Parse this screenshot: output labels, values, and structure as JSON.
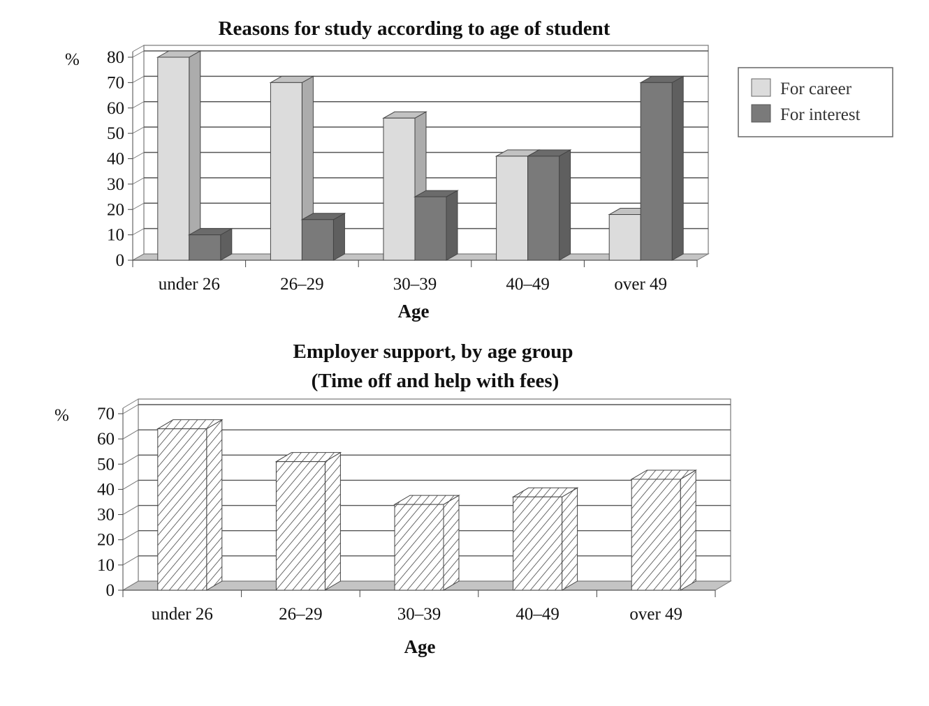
{
  "chart_data": [
    {
      "type": "bar",
      "title": "Reasons for study according to age of student",
      "xlabel": "Age",
      "ylabel": "%",
      "ylim": [
        0,
        80
      ],
      "yticks": [
        "0",
        "10",
        "20",
        "30",
        "40",
        "50",
        "60",
        "70",
        "80"
      ],
      "categories": [
        "under 26",
        "26–29",
        "30–39",
        "40–49",
        "over 49"
      ],
      "series": [
        {
          "name": "For career",
          "values": [
            80,
            70,
            56,
            41,
            18
          ],
          "color": "#dcdcdc"
        },
        {
          "name": "For interest",
          "values": [
            10,
            16,
            25,
            41,
            70
          ],
          "color": "#7a7a7a"
        }
      ],
      "legend": "right",
      "grid": true
    },
    {
      "type": "bar",
      "title": "Employer support, by age group",
      "subtitle": "(Time off and help with fees)",
      "xlabel": "Age",
      "ylabel": "%",
      "ylim": [
        0,
        70
      ],
      "yticks": [
        "0",
        "10",
        "20",
        "30",
        "40",
        "50",
        "60",
        "70"
      ],
      "categories": [
        "under 26",
        "26–29",
        "30–39",
        "40–49",
        "over 49"
      ],
      "series": [
        {
          "name": "Employer support",
          "values": [
            64,
            51,
            34,
            37,
            44
          ],
          "color": "hatched"
        }
      ],
      "grid": true
    }
  ]
}
